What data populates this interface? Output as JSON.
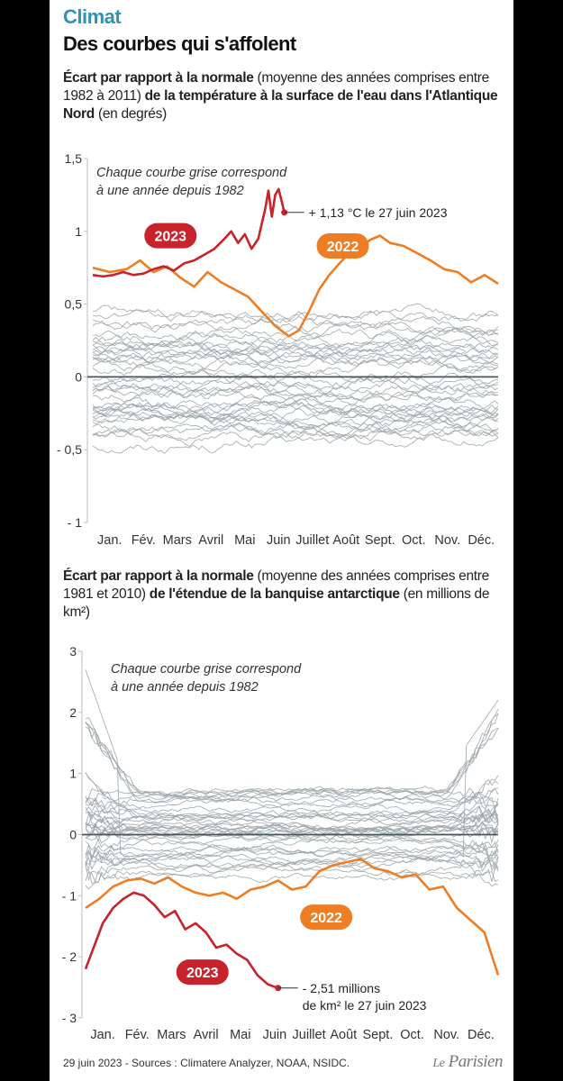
{
  "header": {
    "topic": "Climat",
    "headline": "Des courbes qui s'affolent"
  },
  "chart1_subtitle": {
    "part1": "Écart par rapport à la normale",
    "part2": " (moyenne des années comprises entre 1982 à 2011) ",
    "part3": "de la température à la surface de l'eau dans l'Atlantique Nord",
    "part4": " (en degrés)"
  },
  "chart2_subtitle": {
    "part1": "Écart par rapport à la normale",
    "part2": " (moyenne des années comprises entre 1981 et 2010) ",
    "part3": "de l'étendue de la banquise antarctique",
    "part4": " (en millions de km²)"
  },
  "footer": {
    "sources": "29 juin 2023 - Sources : Climatere Analyzer, NOAA, NSIDC.",
    "logo_le": "Le",
    "logo_name": "Parisien"
  },
  "colors": {
    "topic": "#2f93b8",
    "y2023": "#c8232c",
    "y2022": "#ee7d23",
    "grey": "#9aa3a8",
    "zero": "#4a555b"
  },
  "chart_data": [
    {
      "type": "line",
      "note": "Chaque courbe grise correspond à une année depuis 1982",
      "ylim": [
        -1,
        1.5
      ],
      "y_ticks": [
        -1,
        -0.5,
        0,
        0.5,
        1,
        1.5
      ],
      "y_tick_labels": [
        "- 1",
        "- 0,5",
        "0",
        "0,5",
        "1",
        "1,5"
      ],
      "categories": [
        "Jan.",
        "Fév.",
        "Mars",
        "Avril",
        "Mai",
        "Juin",
        "Juillet",
        "Août",
        "Sept.",
        "Oct.",
        "Nov.",
        "Déc."
      ],
      "x_unit": "month (1 = début janvier, 13 = fin décembre)",
      "series": [
        {
          "name": "2023",
          "color": "#c8232c",
          "x": [
            1,
            1.3,
            1.6,
            1.9,
            2.2,
            2.5,
            2.8,
            3.1,
            3.4,
            3.7,
            4.0,
            4.3,
            4.6,
            4.9,
            5.1,
            5.3,
            5.5,
            5.7,
            5.9,
            6.0,
            6.1,
            6.2,
            6.3,
            6.4,
            6.5,
            6.6,
            6.67
          ],
          "y": [
            0.7,
            0.69,
            0.7,
            0.72,
            0.7,
            0.71,
            0.74,
            0.76,
            0.73,
            0.78,
            0.8,
            0.84,
            0.88,
            0.95,
            1.0,
            0.92,
            0.98,
            0.88,
            0.95,
            1.05,
            1.15,
            1.28,
            1.1,
            1.25,
            1.29,
            1.2,
            1.13
          ]
        },
        {
          "name": "2022",
          "color": "#ee7d23",
          "x": [
            1,
            1.5,
            2.0,
            2.4,
            2.8,
            3.2,
            3.6,
            4.0,
            4.4,
            4.8,
            5.2,
            5.6,
            6.0,
            6.4,
            6.8,
            7.1,
            7.4,
            7.7,
            8.0,
            8.3,
            8.6,
            8.9,
            9.2,
            9.5,
            9.8,
            10.2,
            10.6,
            11.0,
            11.4,
            11.8,
            12.2,
            12.6,
            13.0
          ],
          "y": [
            0.75,
            0.72,
            0.74,
            0.8,
            0.72,
            0.76,
            0.68,
            0.62,
            0.72,
            0.65,
            0.6,
            0.55,
            0.45,
            0.35,
            0.28,
            0.32,
            0.45,
            0.6,
            0.7,
            0.78,
            0.85,
            0.88,
            0.94,
            0.97,
            0.92,
            0.9,
            0.85,
            0.8,
            0.74,
            0.72,
            0.65,
            0.7,
            0.64
          ]
        }
      ],
      "annotations": [
        {
          "label": "2023",
          "x": 3.3,
          "y": 0.97,
          "style": "red-pill"
        },
        {
          "label": "2022",
          "x": 8.4,
          "y": 0.9,
          "style": "orange-pill"
        },
        {
          "label": "+ 1,13 °C le 27 juin 2023",
          "x": 6.67,
          "y": 1.13,
          "style": "point"
        }
      ],
      "background_years": "1982-2021 (courbes grises)"
    },
    {
      "type": "line",
      "note": "Chaque courbe grise correspond à une année depuis 1982",
      "ylim": [
        -3,
        3
      ],
      "y_ticks": [
        -3,
        -2,
        -1,
        0,
        1,
        2,
        3
      ],
      "y_tick_labels": [
        "- 3",
        "- 2",
        "- 1",
        "0",
        "1",
        "2",
        "3"
      ],
      "categories": [
        "Jan.",
        "Fév.",
        "Mars",
        "Avril",
        "Mai",
        "Juin",
        "Juillet",
        "Août",
        "Sept.",
        "Oct.",
        "Nov.",
        "Déc."
      ],
      "x_unit": "month (1 = début janvier, 13 = fin décembre)",
      "series": [
        {
          "name": "2023",
          "color": "#c8232c",
          "x": [
            1,
            1.2,
            1.5,
            1.8,
            2.1,
            2.4,
            2.7,
            3.0,
            3.3,
            3.6,
            3.9,
            4.2,
            4.5,
            4.8,
            5.1,
            5.4,
            5.7,
            6.0,
            6.3,
            6.6
          ],
          "y": [
            -2.2,
            -1.9,
            -1.45,
            -1.2,
            -1.05,
            -0.95,
            -1.0,
            -1.15,
            -1.35,
            -1.25,
            -1.55,
            -1.45,
            -1.6,
            -1.85,
            -1.8,
            -1.95,
            -2.05,
            -2.3,
            -2.45,
            -2.51
          ]
        },
        {
          "name": "2022",
          "color": "#ee7d23",
          "x": [
            1,
            1.4,
            1.8,
            2.2,
            2.6,
            3.0,
            3.4,
            3.8,
            4.2,
            4.6,
            5.0,
            5.4,
            5.8,
            6.2,
            6.6,
            7.0,
            7.4,
            7.8,
            8.2,
            8.6,
            9.0,
            9.4,
            9.8,
            10.2,
            10.6,
            11.0,
            11.4,
            11.8,
            12.2,
            12.6,
            13.0
          ],
          "y": [
            -1.2,
            -1.05,
            -0.85,
            -0.75,
            -0.72,
            -0.8,
            -0.7,
            -0.85,
            -0.95,
            -1.0,
            -0.95,
            -1.05,
            -0.9,
            -0.85,
            -0.75,
            -0.9,
            -0.85,
            -0.6,
            -0.5,
            -0.45,
            -0.4,
            -0.55,
            -0.6,
            -0.7,
            -0.65,
            -0.9,
            -0.85,
            -1.2,
            -1.4,
            -1.6,
            -2.3
          ]
        }
      ],
      "annotations": [
        {
          "label": "2022",
          "x": 8.0,
          "y": -1.35,
          "style": "orange-pill"
        },
        {
          "label": "2023",
          "x": 4.4,
          "y": -2.25,
          "style": "red-pill"
        },
        {
          "label": "- 2,51 millions",
          "x": 6.6,
          "y": -2.51,
          "style": "point"
        },
        {
          "label": "de km² le 27 juin 2023",
          "x": 6.6,
          "y": -2.51,
          "style": "point-line2"
        }
      ],
      "background_years": "1982-2021 (courbes grises)"
    }
  ]
}
